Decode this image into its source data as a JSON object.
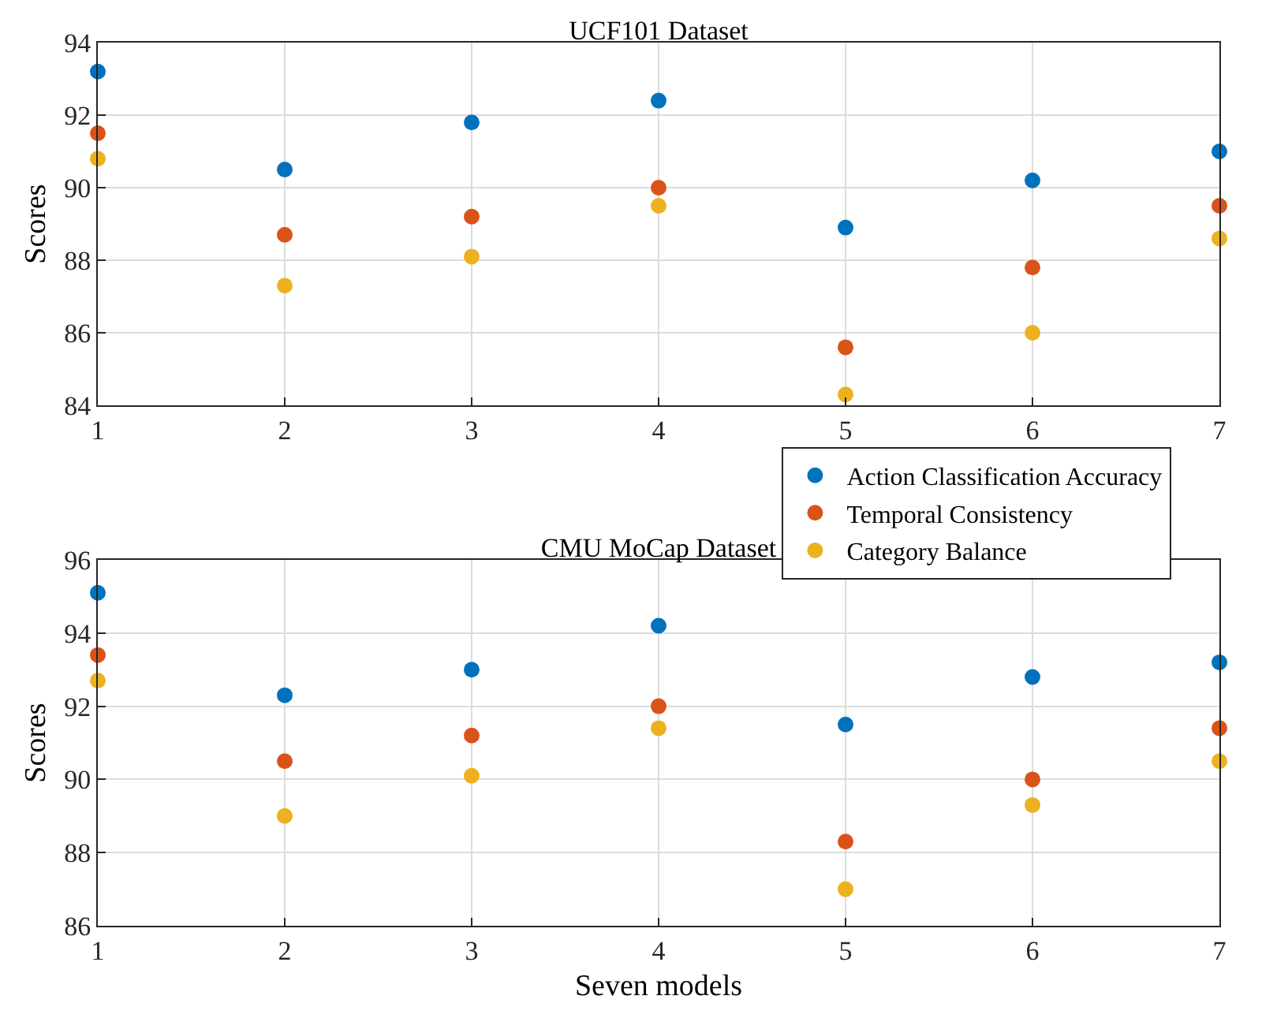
{
  "chart_data": [
    {
      "type": "scatter",
      "title": "UCF101 Dataset",
      "ylabel": "Scores",
      "x": [
        1,
        2,
        3,
        4,
        5,
        6,
        7
      ],
      "xlim": [
        1,
        7
      ],
      "xticks": [
        1,
        2,
        3,
        4,
        5,
        6,
        7
      ],
      "ylim": [
        84,
        94
      ],
      "yticks": [
        84,
        86,
        88,
        90,
        92,
        94
      ],
      "grid": true,
      "marker": "circle",
      "legend": "bottom right",
      "series": [
        {
          "name": "Action Classification Accuracy",
          "color": "#0072bd",
          "values": [
            93.2,
            90.5,
            91.8,
            92.4,
            88.9,
            90.2,
            91.0
          ]
        },
        {
          "name": "Temporal Consistency",
          "color": "#d95319",
          "values": [
            91.5,
            88.7,
            89.2,
            90.0,
            85.6,
            87.8,
            89.5
          ]
        },
        {
          "name": "Category Balance",
          "color": "#edb120",
          "values": [
            90.8,
            87.3,
            88.1,
            89.5,
            84.3,
            86.0,
            88.6
          ]
        }
      ]
    },
    {
      "type": "scatter",
      "title": "CMU MoCap Dataset",
      "xlabel": "Seven models",
      "ylabel": "Scores",
      "x": [
        1,
        2,
        3,
        4,
        5,
        6,
        7
      ],
      "xlim": [
        1,
        7
      ],
      "xticks": [
        1,
        2,
        3,
        4,
        5,
        6,
        7
      ],
      "ylim": [
        86,
        96
      ],
      "yticks": [
        86,
        88,
        90,
        92,
        94,
        96
      ],
      "grid": true,
      "marker": "circle",
      "series": [
        {
          "color": "#0072bd",
          "values": [
            95.1,
            92.3,
            93.0,
            94.2,
            91.5,
            92.8,
            93.2
          ]
        },
        {
          "color": "#d95319",
          "values": [
            93.4,
            90.5,
            91.2,
            92.0,
            88.3,
            90.0,
            91.4
          ]
        },
        {
          "color": "#edb120",
          "values": [
            92.7,
            89.0,
            90.1,
            91.4,
            87.0,
            89.3,
            90.5
          ]
        }
      ]
    }
  ]
}
